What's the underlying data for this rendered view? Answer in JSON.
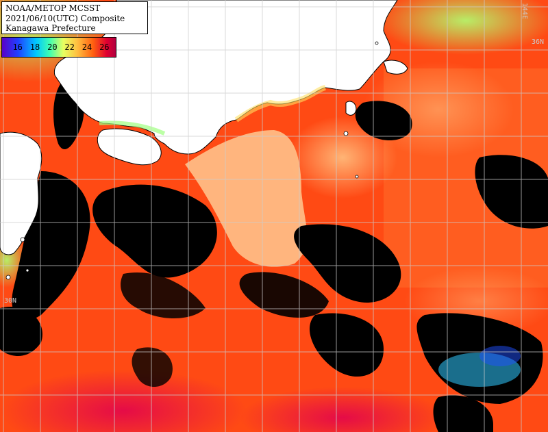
{
  "title": {
    "line1": "NOAA/METOP MCSST",
    "line2": "2021/06/10(UTC) Composite",
    "line3": "Kanagawa Prefecture"
  },
  "scale": {
    "ticks": [
      "16",
      "18",
      "20",
      "22",
      "24",
      "26"
    ]
  },
  "labels": {
    "lat_36": "36N",
    "lat_30": "30N",
    "lon_144": "144E"
  },
  "colors": {
    "land": "#ffffff",
    "cloud": "#000000",
    "grid": "#cccccc",
    "warm": "#ff4a10",
    "warmer": "#ff2a10",
    "hot": "#e01040",
    "mild": "#ff9a40",
    "kuroshio": "#ffc080",
    "cool": "#c8ff60",
    "cold": "#40ff90"
  }
}
